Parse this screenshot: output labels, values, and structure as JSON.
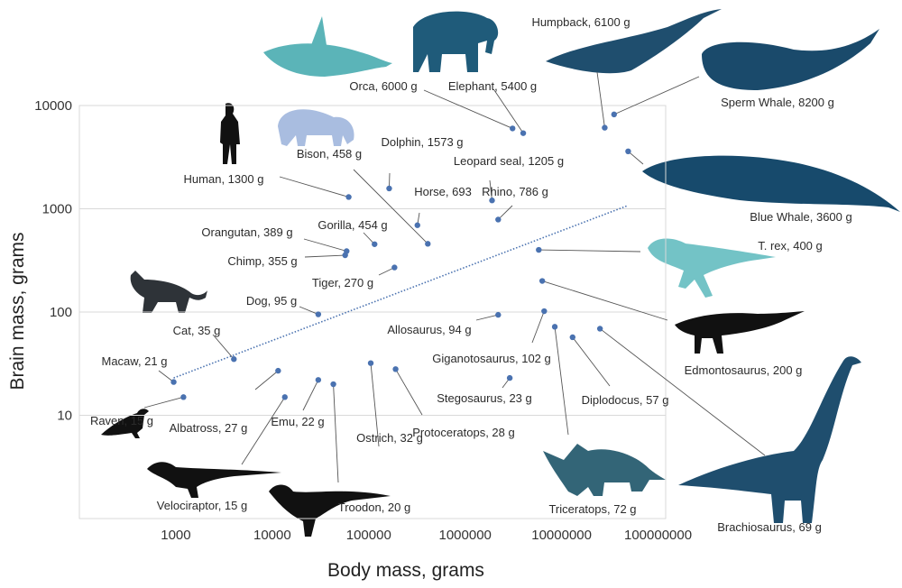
{
  "chart_data": {
    "type": "scatter",
    "xlabel": "Body mass, grams",
    "ylabel": "Brain mass, grams",
    "x_scale": "log",
    "y_scale": "log",
    "xlim": [
      100,
      120000000
    ],
    "ylim": [
      1,
      10000
    ],
    "x_ticks": [
      "1000",
      "10000",
      "100000",
      "1000000",
      "10000000",
      "100000000"
    ],
    "y_ticks": [
      "10",
      "100",
      "1000",
      "10000"
    ],
    "grid": "horizontal",
    "point_color": "#4a72b0",
    "trendline": {
      "style": "dotted",
      "x": [
        950,
        48000000
      ],
      "y": [
        23,
        1070
      ]
    },
    "points": [
      {
        "name": "Orca",
        "label": "Orca, 6000 g",
        "body_g": 3100000,
        "brain_g": 6000
      },
      {
        "name": "Elephant",
        "label": "Elephant, 5400 g",
        "body_g": 4000000,
        "brain_g": 5400
      },
      {
        "name": "Humpback",
        "label": "Humpback, 6100 g",
        "body_g": 28000000,
        "brain_g": 6100
      },
      {
        "name": "Sperm Whale",
        "label": "Sperm Whale, 8200 g",
        "body_g": 35000000,
        "brain_g": 8200
      },
      {
        "name": "Blue Whale",
        "label": "Blue Whale, 3600 g",
        "body_g": 49000000,
        "brain_g": 3600
      },
      {
        "name": "Dolphin",
        "label": "Dolphin, 1573 g",
        "body_g": 163000,
        "brain_g": 1573
      },
      {
        "name": "Bison",
        "label": "Bison, 458 g",
        "body_g": 410000,
        "brain_g": 458
      },
      {
        "name": "Human",
        "label": "Human, 1300 g",
        "body_g": 62000,
        "brain_g": 1300
      },
      {
        "name": "Leopard seal",
        "label": "Leopard seal, 1205 g",
        "body_g": 1900000,
        "brain_g": 1205
      },
      {
        "name": "Horse",
        "label": "Horse, 693",
        "body_g": 320000,
        "brain_g": 693
      },
      {
        "name": "Rhino",
        "label": "Rhino, 786 g",
        "body_g": 2200000,
        "brain_g": 786
      },
      {
        "name": "Gorilla",
        "label": "Gorilla, 454 g",
        "body_g": 115000,
        "brain_g": 454
      },
      {
        "name": "Orangutan",
        "label": "Orangutan, 389 g",
        "body_g": 59000,
        "brain_g": 389
      },
      {
        "name": "Chimp",
        "label": "Chimp, 355 g",
        "body_g": 57000,
        "brain_g": 355
      },
      {
        "name": "Tiger",
        "label": "Tiger, 270 g",
        "body_g": 185000,
        "brain_g": 270
      },
      {
        "name": "Dog",
        "label": "Dog, 95 g",
        "body_g": 30000,
        "brain_g": 95
      },
      {
        "name": "Cat",
        "label": "Cat, 35 g",
        "body_g": 4000,
        "brain_g": 35
      },
      {
        "name": "Macaw",
        "label": "Macaw, 21 g",
        "body_g": 950,
        "brain_g": 21
      },
      {
        "name": "Raven",
        "label": "Raven, 15 g",
        "body_g": 1200,
        "brain_g": 15
      },
      {
        "name": "Albatross",
        "label": "Albatross, 27 g",
        "body_g": 11500,
        "brain_g": 27
      },
      {
        "name": "Velociraptor",
        "label": "Velociraptor, 15 g",
        "body_g": 13500,
        "brain_g": 15
      },
      {
        "name": "Emu",
        "label": "Emu, 22 g",
        "body_g": 30000,
        "brain_g": 22
      },
      {
        "name": "Troodon",
        "label": "Troodon, 20 g",
        "body_g": 43000,
        "brain_g": 20
      },
      {
        "name": "Ostrich",
        "label": "Ostrich, 32 g",
        "body_g": 105000,
        "brain_g": 32
      },
      {
        "name": "Protoceratops",
        "label": "Protoceratops, 28 g",
        "body_g": 190000,
        "brain_g": 28
      },
      {
        "name": "Allosaurus",
        "label": "Allosaurus, 94 g",
        "body_g": 2200000,
        "brain_g": 94
      },
      {
        "name": "Giganotosaurus",
        "label": "Giganotosaurus, 102 g",
        "body_g": 6600000,
        "brain_g": 102
      },
      {
        "name": "Stegosaurus",
        "label": "Stegosaurus, 23 g",
        "body_g": 2900000,
        "brain_g": 23
      },
      {
        "name": "T. rex",
        "label": "T. rex, 400 g",
        "body_g": 5800000,
        "brain_g": 400
      },
      {
        "name": "Edmontosaurus",
        "label": "Edmontosaurus, 200 g",
        "body_g": 6300000,
        "brain_g": 200
      },
      {
        "name": "Diplodocus",
        "label": "Diplodocus, 57 g",
        "body_g": 13000000,
        "brain_g": 57
      },
      {
        "name": "Triceratops",
        "label": "Triceratops, 72 g",
        "body_g": 8500000,
        "brain_g": 72
      },
      {
        "name": "Brachiosaurus",
        "label": "Brachiosaurus, 69 g",
        "body_g": 25000000,
        "brain_g": 69
      }
    ]
  }
}
